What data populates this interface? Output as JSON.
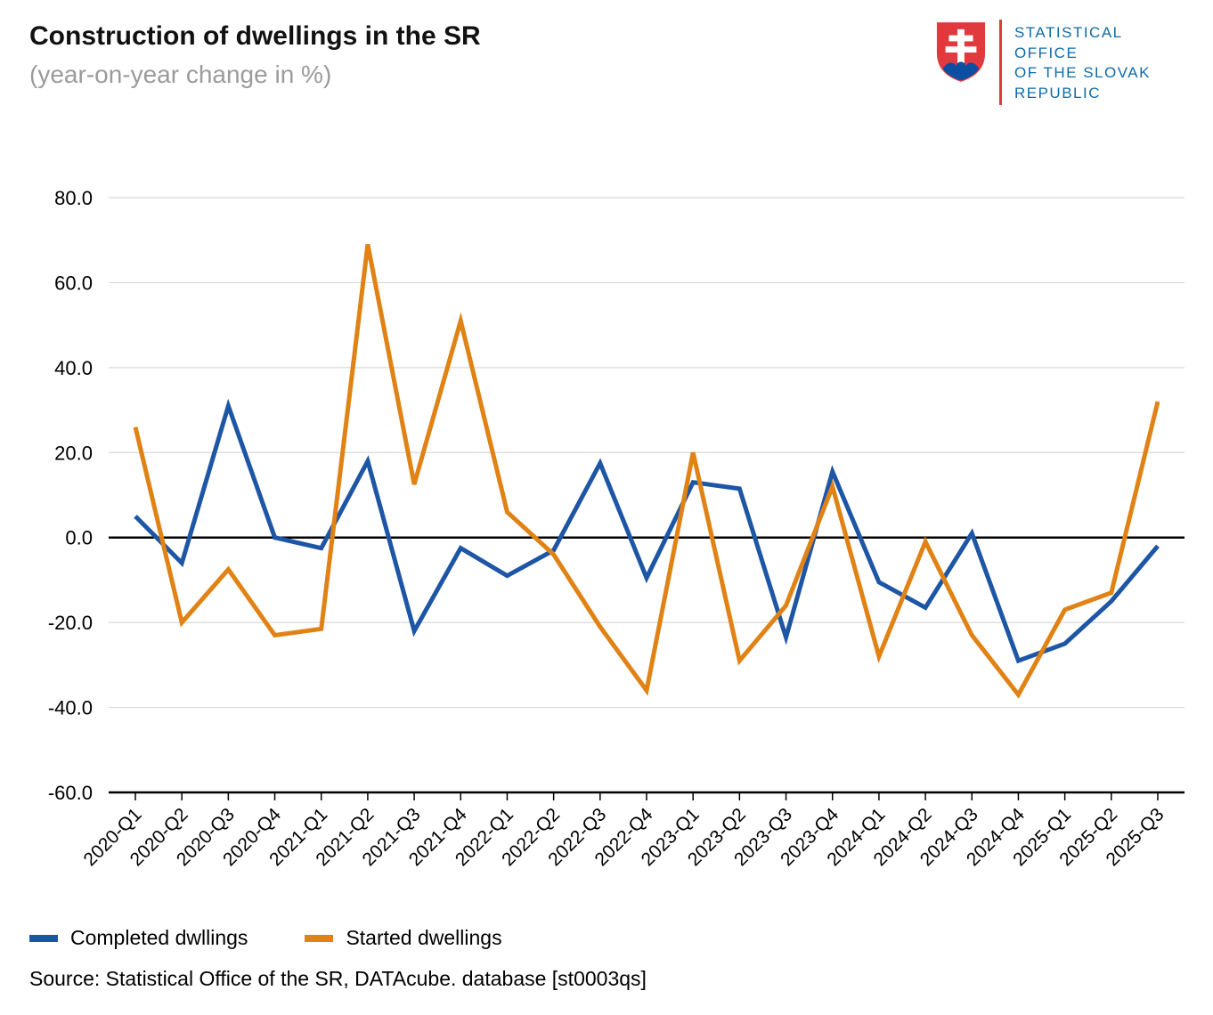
{
  "header": {
    "title": "Construction of dwellings in the SR",
    "subtitle": "(year-on-year change in %)"
  },
  "logo": {
    "lines": [
      "STATISTICAL",
      "OFFICE",
      "OF THE SLOVAK",
      "REPUBLIC"
    ],
    "text_color": "#0e6ba8",
    "shield_red": "#e03a3e",
    "shield_blue": "#0b4ea2"
  },
  "chart_data": {
    "type": "line",
    "title": "Construction of dwellings in the SR (year-on-year change in %)",
    "categories": [
      "2020-Q1",
      "2020-Q2",
      "2020-Q3",
      "2020-Q4",
      "2021-Q1",
      "2021-Q2",
      "2021-Q3",
      "2021-Q4",
      "2022-Q1",
      "2022-Q2",
      "2022-Q3",
      "2022-Q4",
      "2023-Q1",
      "2023-Q2",
      "2023-Q3",
      "2023-Q4",
      "2024-Q1",
      "2024-Q2",
      "2024-Q3",
      "2024-Q4",
      "2025-Q1",
      "2025-Q2",
      "2025-Q3"
    ],
    "series": [
      {
        "name": "Completed dwllings",
        "color": "#1d56a5",
        "values": [
          5,
          -6,
          31,
          0,
          -2.5,
          18,
          -22,
          -2.5,
          -9,
          -3,
          17.5,
          -9.5,
          13,
          11.5,
          -23.5,
          15.5,
          -10.5,
          -16.5,
          1,
          -29,
          -25,
          -15,
          -2
        ]
      },
      {
        "name": "Started dwellings",
        "color": "#e08214",
        "values": [
          26,
          -20,
          -7.5,
          -23,
          -21.5,
          69,
          12.5,
          51,
          6,
          -4,
          -21,
          -36,
          20,
          -29,
          -16,
          12,
          -28,
          -1,
          -23,
          -37,
          -17,
          -13,
          32
        ]
      }
    ],
    "xlabel": "",
    "ylabel": "",
    "ylim": [
      -60,
      80
    ],
    "ytick_step": 20,
    "ytick_format_decimals": 1,
    "grid": true,
    "legend_position": "bottom-left"
  },
  "source": "Source: Statistical Office of the SR, DATAcube. database [st0003qs]"
}
